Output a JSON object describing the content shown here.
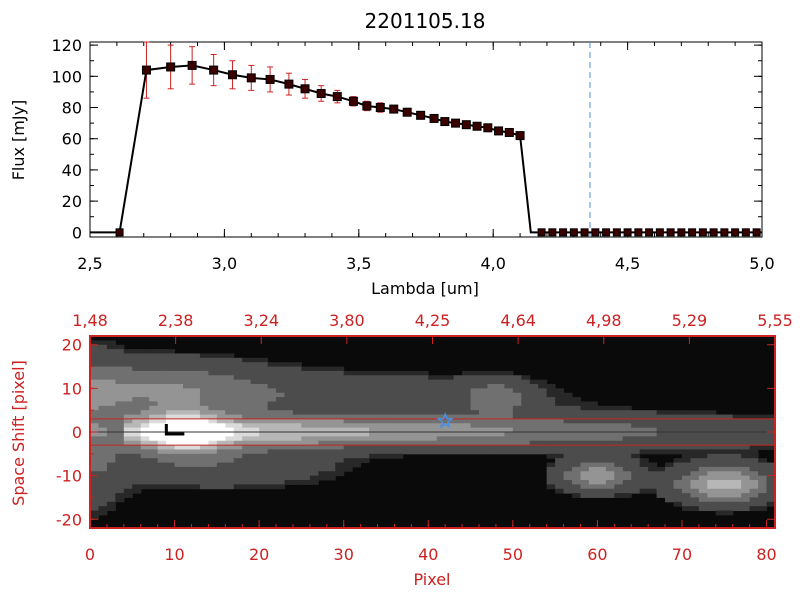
{
  "colors": {
    "black": "#000000",
    "red": "#cc2222",
    "blue": "#4a90e2",
    "bg": "#ffffff"
  },
  "chart_data": [
    {
      "type": "line",
      "title": "2201105.18",
      "xlabel": "Lambda [um]",
      "ylabel": "Flux [mJy]",
      "xlim": [
        2.5,
        5.0
      ],
      "ylim": [
        -3,
        122
      ],
      "xticks": [
        "2.5",
        "3.0",
        "3.5",
        "4.0",
        "4.5",
        "5.0"
      ],
      "yticks": [
        "0",
        "20",
        "40",
        "60",
        "80",
        "100",
        "120"
      ],
      "vline_x": 4.36,
      "line": {
        "x": [
          2.5,
          2.61,
          2.71,
          2.8,
          2.88,
          2.96,
          3.03,
          3.1,
          3.17,
          3.24,
          3.3,
          3.36,
          3.42,
          3.48,
          3.53,
          3.58,
          3.63,
          3.68,
          3.73,
          3.78,
          3.82,
          3.86,
          3.9,
          3.94,
          3.98,
          4.02,
          4.06,
          4.1,
          4.14,
          4.18,
          5.0
        ],
        "y": [
          0,
          0,
          104,
          106,
          107,
          104,
          101,
          99,
          98,
          95,
          92,
          89,
          87,
          84,
          81,
          80,
          79,
          77,
          75,
          73,
          71,
          70,
          69,
          68,
          67,
          65,
          64,
          62,
          0,
          0,
          0
        ]
      },
      "points": {
        "x": [
          2.71,
          2.8,
          2.88,
          2.96,
          3.03,
          3.1,
          3.17,
          3.24,
          3.3,
          3.36,
          3.42,
          3.48,
          3.53,
          3.58,
          3.63,
          3.68,
          3.73,
          3.78,
          3.82,
          3.86,
          3.9,
          3.94,
          3.98,
          4.02,
          4.06,
          4.1
        ],
        "y": [
          104,
          106,
          107,
          104,
          101,
          99,
          98,
          95,
          92,
          89,
          87,
          84,
          81,
          80,
          79,
          77,
          75,
          73,
          71,
          70,
          69,
          68,
          67,
          65,
          64,
          62
        ],
        "err": [
          18,
          14,
          12,
          10,
          9,
          8,
          8,
          7,
          6,
          5,
          4,
          3,
          3,
          3,
          2,
          2,
          2,
          2,
          2,
          2,
          2,
          2,
          2,
          2,
          2,
          2
        ]
      },
      "zero_points_x": [
        2.61,
        4.18,
        4.22,
        4.26,
        4.3,
        4.34,
        4.38,
        4.42,
        4.46,
        4.5,
        4.54,
        4.58,
        4.62,
        4.66,
        4.7,
        4.74,
        4.78,
        4.82,
        4.86,
        4.9,
        4.94,
        4.98
      ]
    },
    {
      "type": "heatmap",
      "xlabel": "Pixel",
      "ylabel": "Space Shift [pixel]",
      "xlim": [
        0,
        81
      ],
      "ylim": [
        -22,
        22
      ],
      "xticks": [
        "0",
        "10",
        "20",
        "30",
        "40",
        "50",
        "60",
        "70",
        "80"
      ],
      "yticks": [
        "-20",
        "-10",
        "0",
        "10",
        "20"
      ],
      "top_ticks": [
        "1.48",
        "2.38",
        "3.24",
        "3.80",
        "4.25",
        "4.64",
        "4.98",
        "5.29",
        "5.55"
      ],
      "aperture_y": [
        -3,
        3
      ],
      "star_marker": {
        "x": 42,
        "y": 2.5
      },
      "source_marker": {
        "x": 9.5,
        "y": 0
      }
    }
  ]
}
